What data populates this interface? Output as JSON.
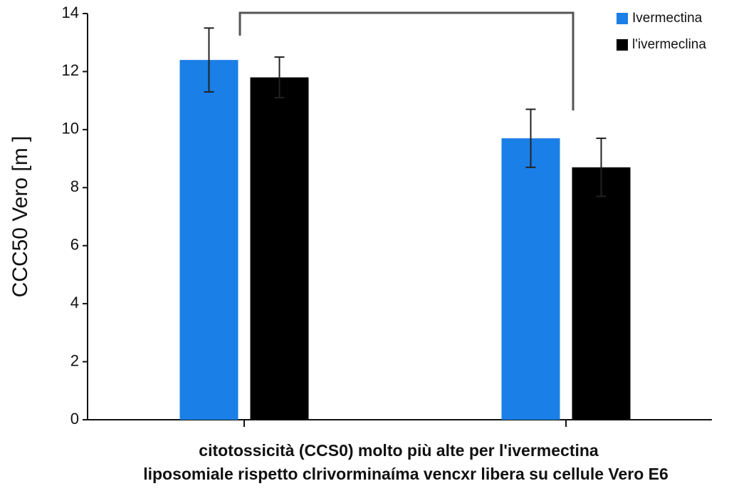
{
  "chart_data": {
    "type": "bar",
    "y_label": "CCC50  Vero  [m ]",
    "x_label": [
      "citotossicità (CCS0) molto più alte per l'ivermectina",
      "liposomiale  rispetto clrivorminaíma vencxr libera su cellule Vero E6"
    ],
    "categories": [
      null,
      null
    ],
    "series": [
      {
        "name": "Ivermectina",
        "color": "#1a7fe6",
        "values": [
          12.4,
          9.7
        ],
        "errors": [
          1.1,
          1.0
        ]
      },
      {
        "name": "l'ivermeclina",
        "color": "#000000",
        "values": [
          11.8,
          8.7
        ],
        "errors": [
          0.7,
          1.0
        ]
      }
    ],
    "ylim": [
      0,
      14
    ],
    "yticks": [
      0,
      2,
      4,
      6,
      8,
      10,
      12,
      14
    ],
    "legend": "upper right"
  }
}
